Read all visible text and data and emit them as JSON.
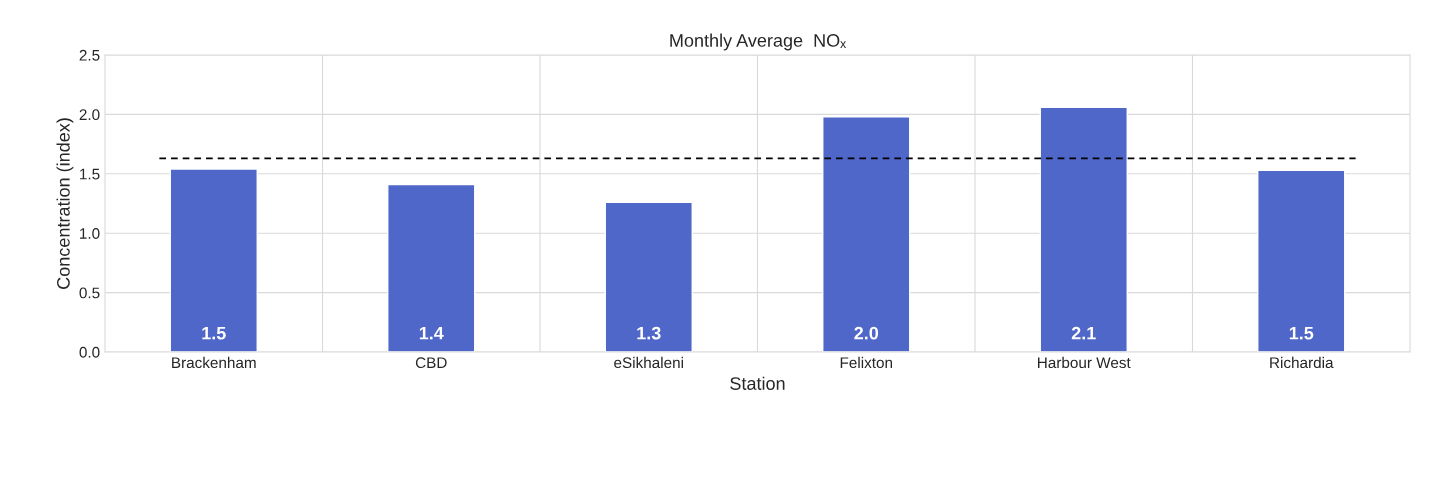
{
  "chart_data": {
    "type": "bar",
    "title": "Monthly Average  NOₓ",
    "xlabel": "Station",
    "ylabel": "Concentration (index)",
    "categories": [
      "Brackenham",
      "CBD",
      "eSikhaleni",
      "Felixton",
      "Harbour West",
      "Richardia"
    ],
    "values": [
      1.54,
      1.41,
      1.26,
      1.98,
      2.06,
      1.53
    ],
    "color": "#4f67c8",
    "value_labels": [
      "1.5",
      "1.4",
      "1.3",
      "2.0",
      "2.1",
      "1.5"
    ],
    "ylim": [
      0,
      2.5
    ],
    "yticks": [
      {
        "value": 0,
        "label": "0.0"
      },
      {
        "value": 0.5,
        "label": "0.5"
      },
      {
        "value": 1.0,
        "label": "1.0"
      },
      {
        "value": 1.5,
        "label": "1.5"
      },
      {
        "value": 2.0,
        "label": "2.0"
      },
      {
        "value": 2.5,
        "label": "2.5"
      }
    ],
    "ref_lines": [
      {
        "axis": "y",
        "value": 1.63,
        "color": "#000000",
        "line_style": "dashed"
      }
    ],
    "grid": true,
    "legend": false
  }
}
